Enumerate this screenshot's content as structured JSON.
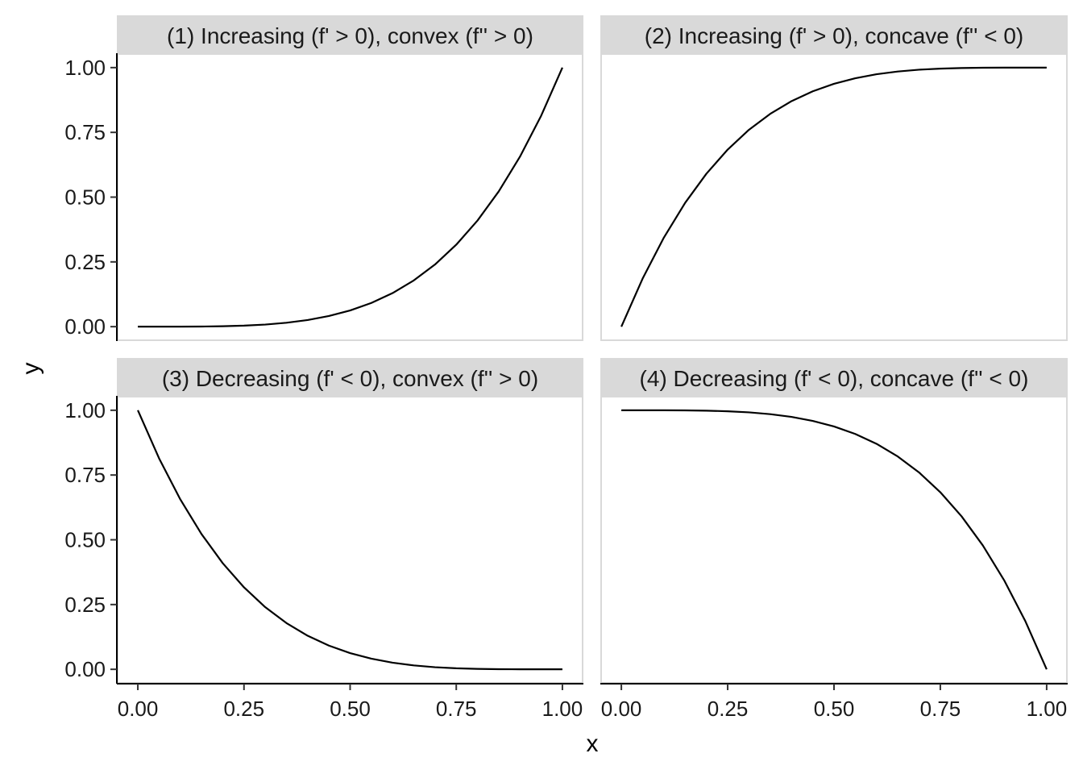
{
  "chart_data": {
    "type": "line",
    "layout": "facet-grid-2x2",
    "xlabel": "x",
    "ylabel": "y",
    "xlim": [
      0,
      1
    ],
    "ylim": [
      0,
      1
    ],
    "x_ticks": [
      "0.00",
      "0.25",
      "0.50",
      "0.75",
      "1.00"
    ],
    "y_ticks": [
      "0.00",
      "0.25",
      "0.50",
      "0.75",
      "1.00"
    ],
    "grid": false,
    "colors": {
      "line": "#000000",
      "strip": "#d9d9d9",
      "panel_border": "#d9d9d9"
    },
    "x": [
      0,
      0.05,
      0.1,
      0.15,
      0.2,
      0.25,
      0.3,
      0.35,
      0.4,
      0.45,
      0.5,
      0.55,
      0.6,
      0.65,
      0.7,
      0.75,
      0.8,
      0.85,
      0.9,
      0.95,
      1
    ],
    "panels": [
      {
        "title": "(1) Increasing (f' > 0), convex (f'' > 0)",
        "y": [
          0,
          0,
          0.0001,
          0.0005,
          0.0016,
          0.0039,
          0.0081,
          0.015,
          0.0256,
          0.041,
          0.0625,
          0.0915,
          0.1296,
          0.1785,
          0.2401,
          0.3164,
          0.4096,
          0.522,
          0.6561,
          0.8145,
          1
        ]
      },
      {
        "title": "(2) Increasing (f' > 0), concave (f'' < 0)",
        "y": [
          0,
          0.1855,
          0.3439,
          0.478,
          0.5904,
          0.6836,
          0.7599,
          0.8215,
          0.8704,
          0.9085,
          0.9375,
          0.959,
          0.9744,
          0.985,
          0.9919,
          0.9961,
          0.9984,
          0.9995,
          0.9999,
          1,
          1
        ]
      },
      {
        "title": "(3) Decreasing (f' < 0), convex (f'' > 0)",
        "y": [
          1,
          0.8145,
          0.6561,
          0.522,
          0.4096,
          0.3164,
          0.2401,
          0.1785,
          0.1296,
          0.0915,
          0.0625,
          0.041,
          0.0256,
          0.015,
          0.0081,
          0.0039,
          0.0016,
          0.0005,
          0.0001,
          0,
          0
        ]
      },
      {
        "title": "(4) Decreasing (f' < 0), concave (f'' < 0)",
        "y": [
          1,
          1,
          0.9999,
          0.9995,
          0.9984,
          0.9961,
          0.9919,
          0.985,
          0.9744,
          0.959,
          0.9375,
          0.9085,
          0.8704,
          0.8215,
          0.7599,
          0.6836,
          0.5904,
          0.478,
          0.3439,
          0.1855,
          0
        ]
      }
    ]
  }
}
